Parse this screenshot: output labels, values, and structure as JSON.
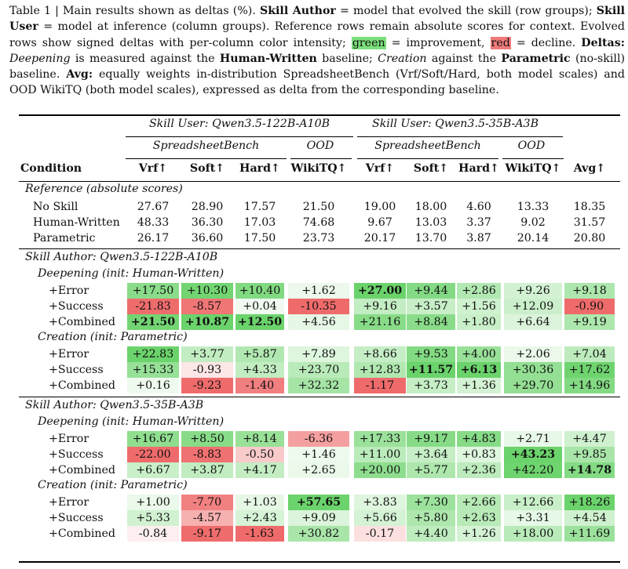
{
  "caption": {
    "table_label": "Table 1",
    "separator": " | ",
    "s1": "Main results shown as deltas (%). ",
    "skill_author_term": "Skill Author",
    "s2": " = model that evolved the skill (row groups); ",
    "skill_user_term": "Skill User",
    "s3": " = model at inference (column groups). Reference rows remain absolute scores for context. Evolved rows show signed deltas with per-column color intensity; ",
    "green_word": "green",
    "s4": " = improvement, ",
    "red_word": "red",
    "s5": " = decline. ",
    "deltas_term": "Deltas:",
    "deepening_term": "Deepening",
    "s6": " is measured against the ",
    "human_written_term": "Human-Written",
    "s7": " baseline; ",
    "creation_term": "Creation",
    "s8": " against the ",
    "parametric_term": "Parametric",
    "s9": " (no-skill) baseline. ",
    "avg_term": "Avg:",
    "s10": " equally weights in-distribution SpreadsheetBench (Vrf/Soft/Hard, both model scales) and OOD WikiTQ (both model scales), expressed as delta from the corresponding baseline."
  },
  "colors": {
    "highlight_green": "#7be07b",
    "highlight_red": "#f07a7a",
    "text": "#111111"
  },
  "header": {
    "user_group_1": "Skill User: Qwen3.5-122B-A10B",
    "user_group_2": "Skill User: Qwen3.5-35B-A3B",
    "bench_1": "SpreadsheetBench",
    "ood_1": "OOD",
    "bench_2": "SpreadsheetBench",
    "ood_2": "OOD",
    "condition": "Condition",
    "columns": [
      "Vrf↑",
      "Soft↑",
      "Hard↑",
      "WikiTQ↑",
      "Vrf↑",
      "Soft↑",
      "Hard↑",
      "WikiTQ↑",
      "Avg↑"
    ]
  },
  "reference": {
    "label": "Reference (absolute scores)",
    "rows": [
      {
        "label": "No Skill",
        "values": [
          "27.67",
          "28.90",
          "17.57",
          "21.50",
          "19.00",
          "18.00",
          "4.60",
          "13.33",
          "18.35"
        ]
      },
      {
        "label": "Human-Written",
        "values": [
          "48.33",
          "36.30",
          "17.03",
          "74.68",
          "9.67",
          "13.03",
          "3.37",
          "9.02",
          "31.57"
        ]
      },
      {
        "label": "Parametric",
        "values": [
          "26.17",
          "36.60",
          "17.50",
          "23.73",
          "20.17",
          "13.70",
          "3.87",
          "20.14",
          "20.80"
        ]
      }
    ]
  },
  "authors": [
    {
      "label": "Skill Author: Qwen3.5-122B-A10B",
      "groups": [
        {
          "label": "Deepening (init: Human-Written)",
          "rows": [
            {
              "label": "+Error",
              "values": [
                "+17.50",
                "+10.30",
                "+10.40",
                "+1.62",
                "+27.00",
                "+9.44",
                "+2.86",
                "+9.26",
                "+9.18"
              ],
              "bold": [
                false,
                false,
                false,
                false,
                true,
                false,
                false,
                false,
                false
              ]
            },
            {
              "label": "+Success",
              "values": [
                "-21.83",
                "-8.57",
                "+0.04",
                "-10.35",
                "+9.16",
                "+3.57",
                "+1.56",
                "+12.09",
                "-0.90"
              ],
              "bold": [
                false,
                false,
                false,
                false,
                false,
                false,
                false,
                false,
                false
              ]
            },
            {
              "label": "+Combined",
              "values": [
                "+21.50",
                "+10.87",
                "+12.50",
                "+4.56",
                "+21.16",
                "+8.84",
                "+1.80",
                "+6.64",
                "+9.19"
              ],
              "bold": [
                true,
                true,
                true,
                false,
                false,
                false,
                false,
                false,
                false
              ]
            }
          ]
        },
        {
          "label": "Creation (init: Parametric)",
          "rows": [
            {
              "label": "+Error",
              "values": [
                "+22.83",
                "+3.77",
                "+5.87",
                "+7.89",
                "+8.66",
                "+9.53",
                "+4.00",
                "+2.06",
                "+7.04"
              ],
              "bold": [
                false,
                false,
                false,
                false,
                false,
                false,
                false,
                false,
                false
              ]
            },
            {
              "label": "+Success",
              "values": [
                "+15.33",
                "-0.93",
                "+4.33",
                "+23.70",
                "+12.83",
                "+11.57",
                "+6.13",
                "+30.36",
                "+17.62"
              ],
              "bold": [
                false,
                false,
                false,
                false,
                false,
                true,
                true,
                false,
                false
              ]
            },
            {
              "label": "+Combined",
              "values": [
                "+0.16",
                "-9.23",
                "-1.40",
                "+32.32",
                "-1.17",
                "+3.73",
                "+1.36",
                "+29.70",
                "+14.96"
              ],
              "bold": [
                false,
                false,
                false,
                false,
                false,
                false,
                false,
                false,
                false
              ]
            }
          ]
        }
      ]
    },
    {
      "label": "Skill Author: Qwen3.5-35B-A3B",
      "groups": [
        {
          "label": "Deepening (init: Human-Written)",
          "rows": [
            {
              "label": "+Error",
              "values": [
                "+16.67",
                "+8.50",
                "+8.14",
                "-6.36",
                "+17.33",
                "+9.17",
                "+4.83",
                "+2.71",
                "+4.47"
              ],
              "bold": [
                false,
                false,
                false,
                false,
                false,
                false,
                false,
                false,
                false
              ]
            },
            {
              "label": "+Success",
              "values": [
                "-22.00",
                "-8.83",
                "-0.50",
                "+1.46",
                "+11.00",
                "+3.64",
                "+0.83",
                "+43.23",
                "+9.85"
              ],
              "bold": [
                false,
                false,
                false,
                false,
                false,
                false,
                false,
                true,
                false
              ]
            },
            {
              "label": "+Combined",
              "values": [
                "+6.67",
                "+3.87",
                "+4.17",
                "+2.65",
                "+20.00",
                "+5.77",
                "+2.36",
                "+42.20",
                "+14.78"
              ],
              "bold": [
                false,
                false,
                false,
                false,
                false,
                false,
                false,
                false,
                true
              ]
            }
          ]
        },
        {
          "label": "Creation (init: Parametric)",
          "rows": [
            {
              "label": "+Error",
              "values": [
                "+1.00",
                "-7.70",
                "+1.03",
                "+57.65",
                "+3.83",
                "+7.30",
                "+2.66",
                "+12.66",
                "+18.26"
              ],
              "bold": [
                false,
                false,
                false,
                true,
                false,
                false,
                false,
                false,
                false
              ]
            },
            {
              "label": "+Success",
              "values": [
                "+5.33",
                "-4.57",
                "+2.43",
                "+9.09",
                "+5.66",
                "+5.80",
                "+2.63",
                "+3.31",
                "+4.54"
              ],
              "bold": [
                false,
                false,
                false,
                false,
                false,
                false,
                false,
                false,
                false
              ]
            },
            {
              "label": "+Combined",
              "values": [
                "-0.84",
                "-9.17",
                "-1.63",
                "+30.82",
                "-0.17",
                "+4.40",
                "+1.26",
                "+18.00",
                "+11.69"
              ],
              "bold": [
                false,
                false,
                false,
                false,
                false,
                false,
                false,
                false,
                false
              ]
            }
          ]
        }
      ]
    }
  ]
}
